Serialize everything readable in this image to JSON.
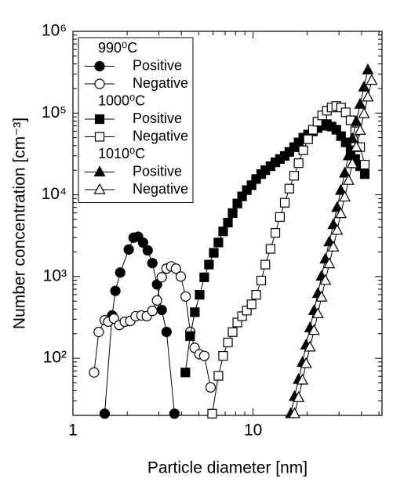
{
  "chart_data": {
    "type": "scatter",
    "xlabel": "Particle diameter [nm]",
    "ylabel": "Number concentration [cm⁻³]",
    "xscale": "log",
    "yscale": "log",
    "xlim": [
      1,
      52
    ],
    "ylim": [
      20,
      1000000
    ],
    "xticks": [
      1,
      10
    ],
    "yticks": [
      {
        "value": 100,
        "label": "10²"
      },
      {
        "value": 1000,
        "label": "10³"
      },
      {
        "value": 10000,
        "label": "10⁴"
      },
      {
        "value": 100000,
        "label": "10⁵"
      },
      {
        "value": 1000000,
        "label": "10⁶"
      }
    ],
    "xminorticks": [
      2,
      3,
      4,
      5,
      6,
      7,
      8,
      9,
      20,
      30,
      40,
      50
    ],
    "yminorticks": [
      30,
      40,
      50,
      60,
      70,
      80,
      90,
      200,
      300,
      400,
      500,
      600,
      700,
      800,
      900,
      2000,
      3000,
      4000,
      5000,
      6000,
      7000,
      8000,
      9000,
      20000,
      30000,
      40000,
      50000,
      60000,
      70000,
      80000,
      90000,
      200000,
      300000,
      400000,
      500000,
      600000,
      700000,
      800000,
      900000
    ],
    "legend": "upper left",
    "groups": [
      {
        "title": "990⁰C",
        "series": [
          {
            "name": "Positive",
            "color": "#000000",
            "marker": "circle",
            "filled": true,
            "x": [
              1.5,
              1.65,
              1.72,
              1.83,
              2.04,
              2.17,
              2.3,
              2.45,
              2.6,
              2.76,
              2.93,
              3.11,
              3.31,
              3.66
            ],
            "values": [
              21,
              334,
              668,
              1120,
              2140,
              2990,
              3070,
              2600,
              2090,
              1460,
              800,
              390,
              210,
              21
            ]
          },
          {
            "name": "Negative",
            "color": "#000000",
            "marker": "circle",
            "filled": false,
            "x": [
              1.31,
              1.39,
              1.5,
              1.57,
              1.69,
              1.81,
              1.94,
              2.08,
              2.23,
              2.4,
              2.57,
              2.76,
              2.93,
              3.11,
              3.31,
              3.51,
              3.73,
              3.97,
              4.22,
              4.48,
              4.74,
              5.04,
              5.36,
              5.81
            ],
            "values": [
              67,
              210,
              292,
              280,
              306,
              255,
              280,
              286,
              327,
              334,
              327,
              380,
              510,
              980,
              1250,
              1330,
              1250,
              1000,
              570,
              210,
              134,
              112,
              107,
              44
            ]
          }
        ]
      },
      {
        "title": "1000⁰C",
        "series": [
          {
            "name": "Positive",
            "color": "#000000",
            "marker": "square",
            "filled": true,
            "x": [
              4.21,
              4.47,
              4.75,
              5.05,
              5.36,
              5.69,
              6.05,
              6.42,
              6.82,
              7.25,
              7.7,
              8.18,
              8.69,
              9.23,
              9.81,
              10.4,
              11.1,
              11.7,
              12.5,
              13.3,
              14.1,
              15.0,
              15.9,
              16.9,
              17.9,
              19.0,
              20.2,
              21.5,
              22.8,
              24.2,
              25.7,
              27.3,
              29.0,
              30.8,
              32.7,
              34.8,
              36.9,
              39.3,
              41.7
            ],
            "values": [
              67,
              187,
              366,
              598,
              978,
              1400,
              1950,
              2610,
              3570,
              4570,
              5980,
              7820,
              9570,
              11400,
              13100,
              15600,
              17900,
              20000,
              22400,
              25000,
              27400,
              29900,
              33500,
              38300,
              43800,
              50000,
              54700,
              59800,
              65500,
              70000,
              73200,
              68400,
              62500,
              52300,
              43800,
              35000,
              27400,
              22400,
              17900
            ]
          },
          {
            "name": "Negative",
            "color": "#000000",
            "marker": "square",
            "filled": false,
            "x": [
              5.93,
              6.42,
              6.82,
              7.25,
              7.7,
              8.18,
              8.69,
              9.23,
              9.81,
              10.4,
              11.1,
              11.7,
              12.5,
              13.3,
              14.1,
              15.0,
              15.9,
              16.9,
              17.9,
              19.0,
              20.2,
              21.5,
              22.8,
              24.2,
              25.7,
              27.3,
              29.0,
              30.8,
              32.7,
              34.8,
              36.9,
              39.3,
              41.7
            ],
            "values": [
              21,
              61,
              107,
              156,
              209,
              274,
              327,
              383,
              457,
              598,
              894,
              1400,
              2180,
              3420,
              5350,
              8000,
              11900,
              17100,
              24400,
              35000,
              47800,
              62500,
              78500,
              93600,
              107000,
              117000,
              122000,
              117000,
              102000,
              81600,
              59800,
              38300,
              23400
            ]
          }
        ]
      },
      {
        "title": "1010⁰C",
        "series": [
          {
            "name": "Positive",
            "color": "#000000",
            "marker": "triangle",
            "filled": true,
            "x": [
              16.2,
              17.0,
              17.9,
              18.8,
              19.7,
              20.7,
              21.8,
              22.9,
              24.0,
              25.2,
              26.5,
              27.9,
              29.3,
              30.7,
              32.3,
              33.9,
              35.6,
              37.4,
              39.3,
              41.3,
              43.4
            ],
            "values": [
              21,
              34,
              55,
              89,
              145,
              235,
              382,
              620,
              1010,
              1630,
              2650,
              4310,
              6990,
              11300,
              18400,
              29900,
              48500,
              78700,
              128000,
              208000,
              337000
            ]
          },
          {
            "name": "Negative",
            "color": "#000000",
            "marker": "triangle",
            "filled": false,
            "x": [
              17.0,
              17.9,
              18.8,
              19.7,
              20.7,
              21.8,
              22.9,
              24.0,
              25.2,
              26.5,
              27.9,
              29.3,
              30.7,
              32.3,
              33.9,
              35.6,
              37.4,
              39.3,
              41.3,
              43.4,
              45.6
            ],
            "values": [
              21,
              33,
              54,
              86,
              137,
              219,
              350,
              560,
              896,
              1430,
              2290,
              3670,
              5870,
              9380,
              15000,
              24000,
              38400,
              61400,
              98200,
              157000,
              251000
            ]
          }
        ]
      }
    ]
  }
}
